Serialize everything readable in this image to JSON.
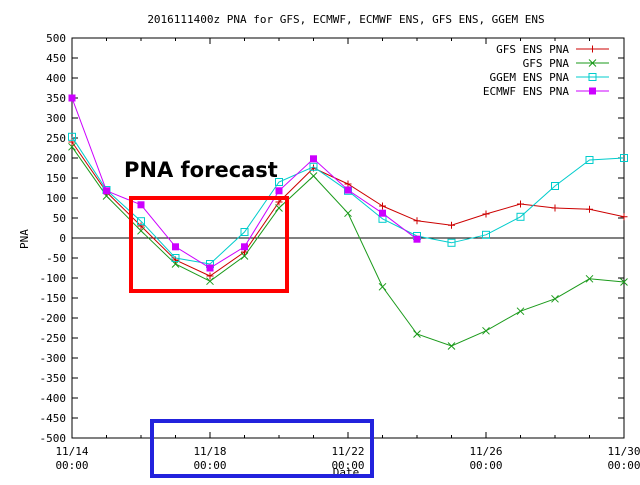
{
  "chart_data": {
    "type": "line",
    "title": "2016111400z PNA for GFS, ECMWF, ECMWF ENS, GFS ENS, GGEM ENS",
    "xlabel": "Date",
    "ylabel": "PNA",
    "x_range": [
      "2016-11-14 00:00",
      "2016-11-30 00:00"
    ],
    "ylim": [
      -500,
      500
    ],
    "yticks": [
      500,
      450,
      400,
      350,
      300,
      250,
      200,
      150,
      100,
      50,
      0,
      -50,
      -100,
      -150,
      -200,
      -250,
      -300,
      -350,
      -400,
      -450,
      -500
    ],
    "xticks": [
      {
        "date": "2016-11-14 00:00",
        "line1": "11/14",
        "line2": "00:00"
      },
      {
        "date": "2016-11-18 00:00",
        "line1": "11/18",
        "line2": "00:00"
      },
      {
        "date": "2016-11-22 00:00",
        "line1": "11/22",
        "line2": "00:00"
      },
      {
        "date": "2016-11-26 00:00",
        "line1": "11/26",
        "line2": "00:00"
      },
      {
        "date": "2016-11-30 00:00",
        "line1": "11/30",
        "line2": "00:00"
      }
    ],
    "zero_line": true,
    "grid": false,
    "legend_position": "top-right",
    "series": [
      {
        "name": "GFS ENS PNA",
        "color": "#cc0000",
        "marker": "plus",
        "x": [
          "2016-11-14 00:00",
          "2016-11-15 00:00",
          "2016-11-16 00:00",
          "2016-11-17 00:00",
          "2016-11-18 00:00",
          "2016-11-19 00:00",
          "2016-11-20 00:00",
          "2016-11-21 00:00",
          "2016-11-22 00:00",
          "2016-11-23 00:00",
          "2016-11-24 00:00",
          "2016-11-25 00:00",
          "2016-11-26 00:00",
          "2016-11-27 00:00",
          "2016-11-28 00:00",
          "2016-11-29 00:00",
          "2016-11-30 00:00"
        ],
        "y": [
          240,
          115,
          30,
          -55,
          -95,
          -35,
          90,
          175,
          135,
          80,
          43,
          32,
          60,
          85,
          75,
          72,
          53
        ]
      },
      {
        "name": "GFS PNA",
        "color": "#1a9a1a",
        "marker": "x",
        "x": [
          "2016-11-14 00:00",
          "2016-11-15 00:00",
          "2016-11-16 00:00",
          "2016-11-17 00:00",
          "2016-11-18 00:00",
          "2016-11-19 00:00",
          "2016-11-20 00:00",
          "2016-11-21 00:00",
          "2016-11-22 00:00",
          "2016-11-23 00:00",
          "2016-11-24 00:00",
          "2016-11-25 00:00",
          "2016-11-26 00:00",
          "2016-11-27 00:00",
          "2016-11-28 00:00",
          "2016-11-29 00:00",
          "2016-11-30 00:00"
        ],
        "y": [
          228,
          105,
          18,
          -65,
          -108,
          -45,
          75,
          155,
          62,
          -122,
          -240,
          -270,
          -232,
          -183,
          -152,
          -102,
          -110
        ]
      },
      {
        "name": "GGEM ENS PNA",
        "color": "#00cccc",
        "marker": "square-open",
        "x": [
          "2016-11-14 00:00",
          "2016-11-15 00:00",
          "2016-11-16 00:00",
          "2016-11-17 00:00",
          "2016-11-18 00:00",
          "2016-11-19 00:00",
          "2016-11-20 00:00",
          "2016-11-21 00:00",
          "2016-11-22 00:00",
          "2016-11-23 00:00",
          "2016-11-24 00:00",
          "2016-11-25 00:00",
          "2016-11-26 00:00",
          "2016-11-27 00:00",
          "2016-11-28 00:00",
          "2016-11-29 00:00",
          "2016-11-30 00:00"
        ],
        "y": [
          253,
          120,
          42,
          -50,
          -65,
          15,
          140,
          178,
          118,
          48,
          5,
          -12,
          8,
          53,
          130,
          195,
          200
        ]
      },
      {
        "name": "ECMWF ENS PNA",
        "color": "#cc00ff",
        "marker": "square-filled",
        "x": [
          "2016-11-14 00:00",
          "2016-11-15 00:00",
          "2016-11-16 00:00",
          "2016-11-17 00:00",
          "2016-11-18 00:00",
          "2016-11-19 00:00",
          "2016-11-20 00:00",
          "2016-11-21 00:00",
          "2016-11-22 00:00",
          "2016-11-23 00:00",
          "2016-11-24 00:00"
        ],
        "y": [
          350,
          118,
          83,
          -22,
          -75,
          -22,
          118,
          198,
          120,
          62,
          -3
        ]
      }
    ],
    "annotations": [
      {
        "text": "PNA forecast"
      }
    ]
  }
}
